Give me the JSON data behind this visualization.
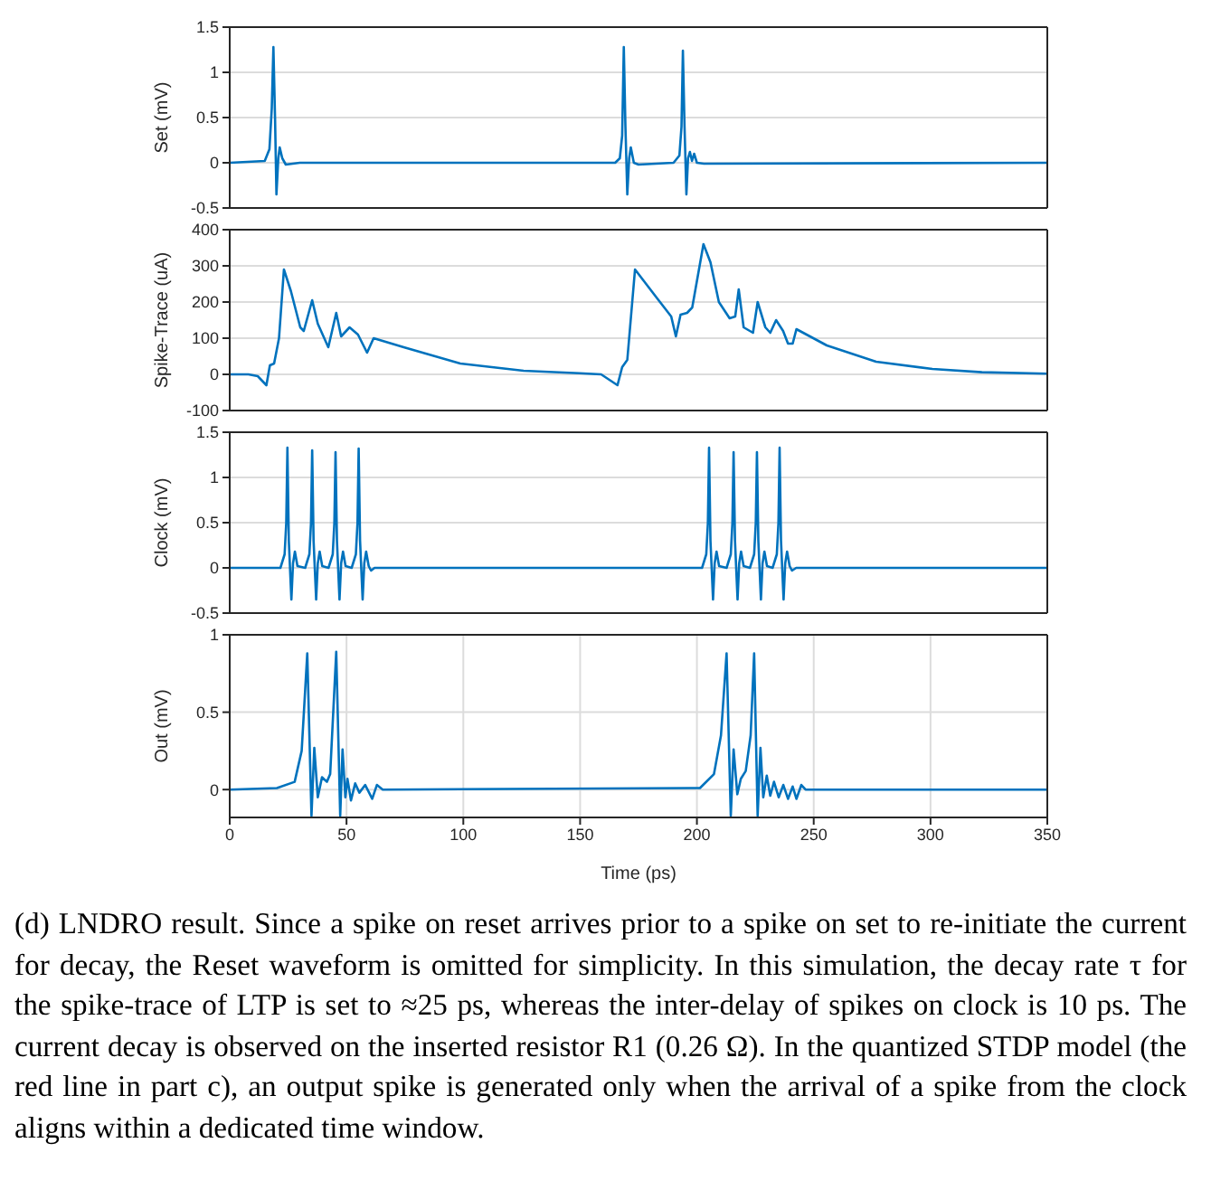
{
  "chart_data": [
    {
      "type": "line",
      "ylabel": "Set (mV)",
      "xlim": [
        0,
        350
      ],
      "xticks": [
        0,
        50,
        100,
        150,
        200,
        250,
        300,
        350
      ],
      "ylim": [
        -0.5,
        1.5
      ],
      "yticks": [
        -0.5,
        0,
        0.5,
        1,
        1.5
      ],
      "grid": true,
      "tick_labels": "y",
      "series": [
        {
          "color": "#0072bd",
          "x": [
            0,
            15,
            17,
            18,
            18.7,
            19.4,
            20,
            20.8,
            21.4,
            22.5,
            24,
            30,
            165,
            167,
            168,
            168.7,
            169.4,
            170.2,
            171,
            171.7,
            173,
            175,
            190,
            192.5,
            193.4,
            194,
            194.7,
            195.5,
            196.2,
            197,
            197.9,
            198.8,
            200,
            203,
            350
          ],
          "values": [
            0,
            0.02,
            0.15,
            0.6,
            1.28,
            0.5,
            -0.35,
            0.05,
            0.17,
            0.05,
            -0.02,
            0,
            0,
            0.05,
            0.3,
            1.28,
            0.4,
            -0.35,
            0.05,
            0.17,
            0,
            -0.02,
            0,
            0.08,
            0.4,
            1.24,
            0.4,
            -0.35,
            0.05,
            0.12,
            0.02,
            0.1,
            0,
            -0.01,
            0
          ]
        }
      ]
    },
    {
      "type": "line",
      "ylabel": "Spike-Trace (uA)",
      "xlim": [
        0,
        350
      ],
      "xticks": [
        0,
        50,
        100,
        150,
        200,
        250,
        300,
        350
      ],
      "ylim": [
        -100,
        400
      ],
      "yticks": [
        -100,
        0,
        100,
        200,
        300,
        400
      ],
      "grid": true,
      "tick_labels": "y",
      "series": [
        {
          "color": "#0072bd",
          "x": [
            0,
            8,
            12,
            15.7,
            17.2,
            19,
            21.1,
            23.2,
            26.2,
            30.2,
            31.7,
            35.3,
            37.7,
            42.2,
            45.6,
            47.7,
            51.3,
            54.9,
            58.8,
            61.6,
            74.5,
            98.7,
            125.8,
            149.7,
            159,
            166,
            168,
            170.2,
            173.5,
            183,
            189,
            191,
            193,
            195.8,
            198,
            202.8,
            205.8,
            209.4,
            214,
            216.4,
            217.9,
            220,
            224,
            226,
            229.3,
            231.4,
            233.9,
            236.9,
            239,
            241,
            242.6,
            255.6,
            276.7,
            300.8,
            322,
            350
          ],
          "values": [
            0,
            0,
            -5,
            -30,
            25,
            30,
            100,
            290,
            230,
            130,
            120,
            205,
            140,
            75,
            170,
            105,
            130,
            110,
            60,
            100,
            75,
            30,
            10,
            3,
            0,
            -30,
            20,
            40,
            290,
            210,
            160,
            105,
            165,
            170,
            185,
            360,
            310,
            200,
            155,
            160,
            235,
            130,
            115,
            200,
            130,
            115,
            150,
            120,
            85,
            85,
            125,
            80,
            35,
            15,
            6,
            2
          ]
        }
      ]
    },
    {
      "type": "line",
      "ylabel": "Clock (mV)",
      "xlim": [
        0,
        350
      ],
      "xticks": [
        0,
        50,
        100,
        150,
        200,
        250,
        300,
        350
      ],
      "ylim": [
        -0.5,
        1.5
      ],
      "yticks": [
        -0.5,
        0,
        0.5,
        1,
        1.5
      ],
      "grid": true,
      "tick_labels": "y",
      "series": [
        {
          "color": "#0072bd",
          "x": [
            0,
            20,
            21.7,
            23.5,
            24.2,
            24.7,
            25.3,
            26.4,
            27.1,
            27.9,
            29,
            32.3,
            34.1,
            34.8,
            35.3,
            35.9,
            37,
            37.7,
            38.5,
            39.6,
            42.3,
            44.1,
            44.8,
            45.3,
            45.9,
            47,
            47.7,
            48.5,
            49.6,
            52.2,
            54,
            54.7,
            55.2,
            55.8,
            56.9,
            57.6,
            58.4,
            59.5,
            60.5,
            62,
            200,
            202.2,
            204,
            204.7,
            205.2,
            205.8,
            206.9,
            207.6,
            208.4,
            209.5,
            212.7,
            214.5,
            215.2,
            215.7,
            216.3,
            217.4,
            218.1,
            218.9,
            220,
            222.7,
            224.5,
            225.2,
            225.7,
            226.3,
            227.4,
            228.1,
            228.9,
            230,
            232.4,
            234.2,
            234.9,
            235.4,
            236,
            237.1,
            237.8,
            238.6,
            239.7,
            240.7,
            242.5,
            350
          ],
          "values": [
            0,
            0,
            0,
            0.15,
            0.5,
            1.33,
            0.3,
            -0.35,
            0.05,
            0.18,
            0.02,
            0,
            0.15,
            0.5,
            1.3,
            0.3,
            -0.35,
            0.05,
            0.18,
            0.02,
            0,
            0.15,
            0.5,
            1.28,
            0.3,
            -0.35,
            0.05,
            0.18,
            0.02,
            0,
            0.15,
            0.5,
            1.32,
            0.3,
            -0.35,
            0.05,
            0.18,
            0.02,
            -0.03,
            0,
            0,
            0,
            0.15,
            0.5,
            1.33,
            0.3,
            -0.35,
            0.05,
            0.18,
            0.02,
            0,
            0.15,
            0.5,
            1.28,
            0.3,
            -0.35,
            0.05,
            0.18,
            0.02,
            0,
            0.15,
            0.5,
            1.28,
            0.3,
            -0.35,
            0.05,
            0.18,
            0.02,
            0,
            0.15,
            0.5,
            1.33,
            0.3,
            -0.35,
            0.05,
            0.18,
            0.02,
            -0.03,
            0,
            0
          ]
        }
      ]
    },
    {
      "type": "line",
      "ylabel": "Out (mV)",
      "xlabel": "Time (ps)",
      "xlim": [
        0,
        350
      ],
      "xticks": [
        0,
        50,
        100,
        150,
        200,
        250,
        300,
        350
      ],
      "ylim": [
        -0.18,
        1
      ],
      "yticks": [
        0,
        0.5,
        1
      ],
      "grid": true,
      "annotations": [
        "(d) LNDRO result. Since a spike on reset arrives prior to a spike on set to re-initiate the current for decay, the Reset waveform is omitted for simplicity. In this simulation, the decay rate τ for the spike-trace of LTP is set to ≈25 ps, whereas the inter-delay of spikes on clock is 10 ps. The current decay is observed on the inserted resistor R1 (0.26 Ω). In the quantized STDP model (the red line in part c), an output spike is generated only when the arrival of a spike from the clock aligns within a dedicated time window."
      ],
      "series": [
        {
          "color": "#0072bd",
          "x": [
            0,
            20.2,
            27.8,
            30.8,
            33.2,
            35,
            36.2,
            37.7,
            39.5,
            41.6,
            43,
            45.6,
            47.3,
            48.3,
            49.5,
            50.4,
            51.9,
            53.7,
            55.5,
            58,
            61,
            63,
            65.5,
            201.3,
            207.3,
            210.3,
            212.7,
            214.5,
            215.7,
            217.3,
            218.8,
            220.9,
            223,
            224.5,
            226,
            227.2,
            228.4,
            229.9,
            231.4,
            233,
            235,
            237,
            239,
            241,
            242.6,
            244.7,
            246.5,
            350
          ],
          "values": [
            0,
            0.01,
            0.05,
            0.25,
            0.88,
            -0.17,
            0.27,
            -0.05,
            0.08,
            0.05,
            0.1,
            0.89,
            -0.17,
            0.26,
            -0.05,
            0.07,
            -0.07,
            0.04,
            -0.02,
            0.03,
            -0.06,
            0.03,
            0,
            0.01,
            0.1,
            0.35,
            0.88,
            -0.17,
            0.26,
            -0.03,
            0.07,
            0.12,
            0.35,
            0.88,
            -0.17,
            0.27,
            -0.05,
            0.09,
            -0.04,
            0.05,
            -0.05,
            0.03,
            -0.06,
            0.02,
            -0.06,
            0.03,
            0,
            0
          ]
        }
      ]
    }
  ]
}
